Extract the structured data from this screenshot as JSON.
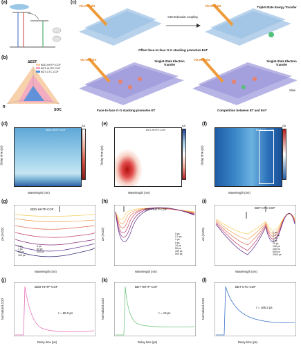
{
  "panels": {
    "a": {
      "label": "(a)"
    },
    "b": {
      "label": "(b)",
      "axes": [
        "ΔEST",
        "SOC",
        "R"
      ],
      "legend": [
        "BDD-HHTP-COF",
        "BDT-HHTP-COF",
        "BDT-CTC-COF"
      ],
      "colors": {
        "bdd": "#f6c99e",
        "bhh": "#f3a2c6",
        "ctc": "#4f8fe0"
      }
    },
    "c": {
      "label": "(c)",
      "caption_top": "Offset face-to-face π-π stacking promotes EnT",
      "caption_bl": "Face-to-face π-π stacking promotes ET",
      "caption_br": "Competition between ET and EnT",
      "light": "Vis-IR light",
      "coupling": "Intermolecular coupling",
      "tset": "Triplet-State Energy Transfer",
      "sset": "Singlet-State Electron Transfer",
      "slow": "Slow"
    },
    "d": {
      "label": "(d)",
      "title": "BDD-HHTP-COF"
    },
    "e": {
      "label": "(e)",
      "title": "BDT-HHTP-COF"
    },
    "f": {
      "label": "(f)",
      "title": "BDT-CTC-COF"
    },
    "g": {
      "label": "(g)",
      "title": "BDD-HHTP-COF",
      "legend": [
        "0 ps",
        "1 ps",
        "10 ps",
        "100 ps",
        "5 ps",
        "50 ps",
        "500 ps"
      ]
    },
    "h": {
      "label": "(h)",
      "title": "BDT-HHTP-COF",
      "legend": [
        "0 ps",
        "0.2 ps",
        "1 ps",
        "5 ps",
        "10 ps",
        "50 ps",
        "100 ps",
        "500 ps"
      ]
    },
    "i": {
      "label": "(i)",
      "title": "BDT-CTC-COF",
      "legend": [
        "0 ps",
        "0.2 ps",
        "1 ps",
        "5 ps",
        "20 ps",
        "100 ps",
        "200 ps",
        "500 ps",
        "2000 ps"
      ]
    },
    "j": {
      "label": "(j)",
      "title": "BDD-HHTP-COF",
      "tau": "τ = 65.0 ps"
    },
    "k": {
      "label": "(k)",
      "title": "BDT-HHTP-COF",
      "tau": "τ = 13 ps"
    },
    "l": {
      "label": "(l)",
      "title": "BDT-CTC-COF",
      "tau": "τ = 165.2 ps"
    }
  },
  "axes": {
    "delay_label": "Delay time (ps)",
    "wavelength_label": "Wavelength (nm)",
    "dA_label": "ΔA (mOD)",
    "norm_label": "Normalized ΔOD",
    "map_cbar_label": "ΔA",
    "map_yticks": [
      "1000",
      "100",
      "10",
      "1"
    ],
    "map_xticks": [
      "500",
      "600",
      "700"
    ],
    "spec_xticks": [
      "450",
      "500",
      "550",
      "600",
      "650",
      "700",
      "750"
    ],
    "kin_xticks": [
      "-1000",
      "1000",
      "3000",
      "5000",
      "7000"
    ]
  }
}
